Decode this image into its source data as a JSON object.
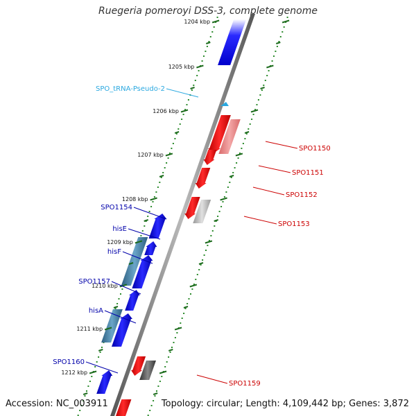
{
  "title": "Ruegeria pomeroyi DSS-3, complete genome",
  "accession": "Accession: NC_003911",
  "summary": "Topology: circular; Length: 4,109,442 bp; Genes: 3,872",
  "colors": {
    "forward": "#0000ee",
    "reverse": "#ee0000",
    "reverse_light": "#ee8888",
    "pseudo_gray": "#b0b0b0",
    "dark_gray": "#555555",
    "steel": "#3f7fa8",
    "trna": "#2aa8e0",
    "tick": "#2a8a2a",
    "backbone": "#777777"
  },
  "ticks": [
    {
      "label": "1204 kbp"
    },
    {
      "label": "1205 kbp"
    },
    {
      "label": "1206 kbp"
    },
    {
      "label": "1207 kbp"
    },
    {
      "label": "1208 kbp"
    },
    {
      "label": "1209 kbp"
    },
    {
      "label": "1210 kbp"
    },
    {
      "label": "1211 kbp"
    },
    {
      "label": "1212 kbp"
    }
  ],
  "left_labels": [
    {
      "text": "SPO_tRNA-Pseudo-2",
      "color": "#2aa8e0"
    },
    {
      "text": "SPO1154",
      "color": "#0000aa"
    },
    {
      "text": "hisE",
      "color": "#0000aa"
    },
    {
      "text": "hisF",
      "color": "#0000aa"
    },
    {
      "text": "SPO1157",
      "color": "#0000aa"
    },
    {
      "text": "hisA",
      "color": "#0000aa"
    },
    {
      "text": "SPO1160",
      "color": "#0000aa"
    }
  ],
  "right_labels": [
    {
      "text": "SPO1150",
      "color": "#cc0000"
    },
    {
      "text": "SPO1151",
      "color": "#cc0000"
    },
    {
      "text": "SPO1152",
      "color": "#cc0000"
    },
    {
      "text": "SPO1153",
      "color": "#cc0000"
    },
    {
      "text": "SPO1159",
      "color": "#cc0000"
    }
  ]
}
